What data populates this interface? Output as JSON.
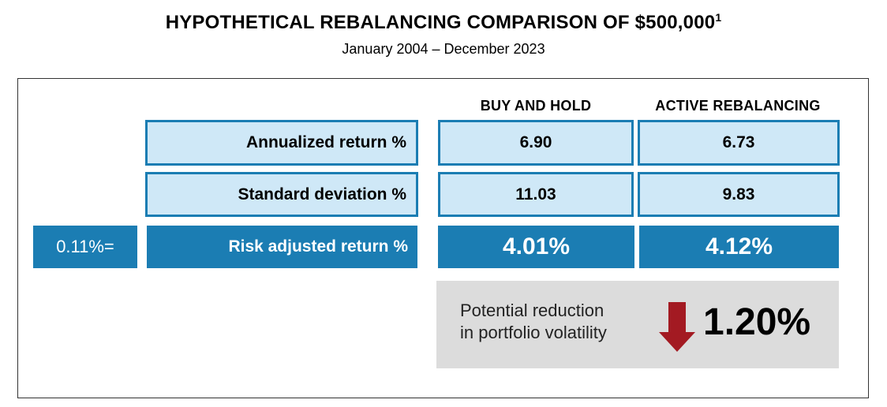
{
  "header": {
    "title": "HYPOTHETICAL REBALANCING COMPARISON OF $500,000",
    "title_footnote": "1",
    "subtitle": "January 2004 – December 2023"
  },
  "chart_data": {
    "type": "table",
    "columns": [
      "BUY AND HOLD",
      "ACTIVE REBALANCING"
    ],
    "rows": [
      {
        "label": "Annualized return  %",
        "values": [
          "6.90",
          "6.73"
        ]
      },
      {
        "label": "Standard deviation %",
        "values": [
          "11.03",
          "9.83"
        ]
      },
      {
        "label": "Risk adjusted return %",
        "values": [
          "4.01%",
          "4.12%"
        ]
      }
    ],
    "risk_adjusted_difference": "0.11%=",
    "volatility_note": {
      "line1": "Potential reduction",
      "line2": "in portfolio volatility",
      "direction": "down",
      "value": "1.20%"
    }
  },
  "colors": {
    "accent_blue": "#1b7db3",
    "light_blue": "#cfe8f7",
    "note_gray": "#dcdcdc",
    "arrow_red": "#a31a22"
  }
}
